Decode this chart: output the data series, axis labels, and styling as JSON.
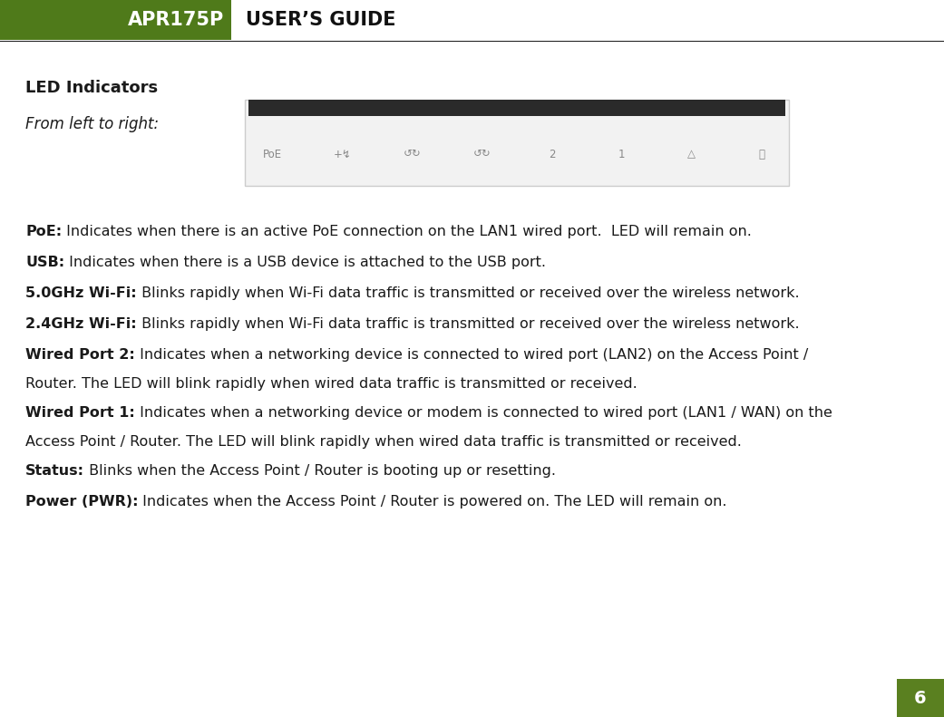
{
  "header_green_color": "#4f7a1a",
  "header_text_apr": "APR175P",
  "header_text_guide": "USER’S GUIDE",
  "page_bg": "#ffffff",
  "section_title": "LED Indicators",
  "section_subtitle": "From left to right:",
  "body_text_color": "#1a1a1a",
  "page_number": "6",
  "page_num_bg": "#5a8020",
  "page_num_color": "#ffffff",
  "entries": [
    {
      "bold": "PoE:",
      "normal": " Indicates when there is an active PoE connection on the LAN1 wired port.  LED will remain on.",
      "lines": 1
    },
    {
      "bold": "USB:",
      "normal": " Indicates when there is a USB device is attached to the USB port.",
      "lines": 1
    },
    {
      "bold": "5.0GHz Wi-Fi:",
      "normal": " Blinks rapidly when Wi-Fi data traffic is transmitted or received over the wireless network.",
      "lines": 1
    },
    {
      "bold": "2.4GHz Wi-Fi:",
      "normal": " Blinks rapidly when Wi-Fi data traffic is transmitted or received over the wireless network.",
      "lines": 1
    },
    {
      "bold": "Wired Port 2:",
      "normal": " Indicates when a networking device is connected to wired port (LAN2) on the Access Point /",
      "line2": "Router. The LED will blink rapidly when wired data traffic is transmitted or received.",
      "lines": 2
    },
    {
      "bold": "Wired Port 1:",
      "normal": " Indicates when a networking device or modem is connected to wired port (LAN1 / WAN) on the",
      "line2": "Access Point / Router. The LED will blink rapidly when wired data traffic is transmitted or received.",
      "lines": 2
    },
    {
      "bold": "Status:",
      "normal": " Blinks when the Access Point / Router is booting up or resetting.",
      "lines": 1
    },
    {
      "bold": "Power (PWR):",
      "normal": " Indicates when the Access Point / Router is powered on. The LED will remain on.",
      "lines": 1
    }
  ]
}
